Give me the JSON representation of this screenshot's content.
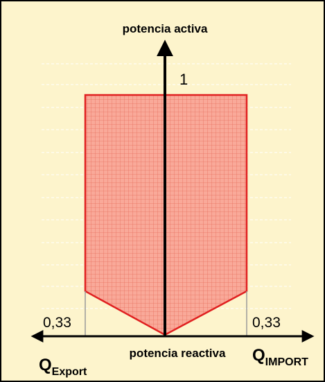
{
  "axes": {
    "vertical_label": "potencia activa",
    "horizontal_label": "potencia reactiva"
  },
  "labels": {
    "max_active": "1",
    "export_value": "0,33",
    "import_value": "0,33",
    "q_export": {
      "symbol": "Q",
      "subscript": "Export"
    },
    "q_import": {
      "symbol": "Q",
      "subscript": "IMPORT"
    }
  }
}
